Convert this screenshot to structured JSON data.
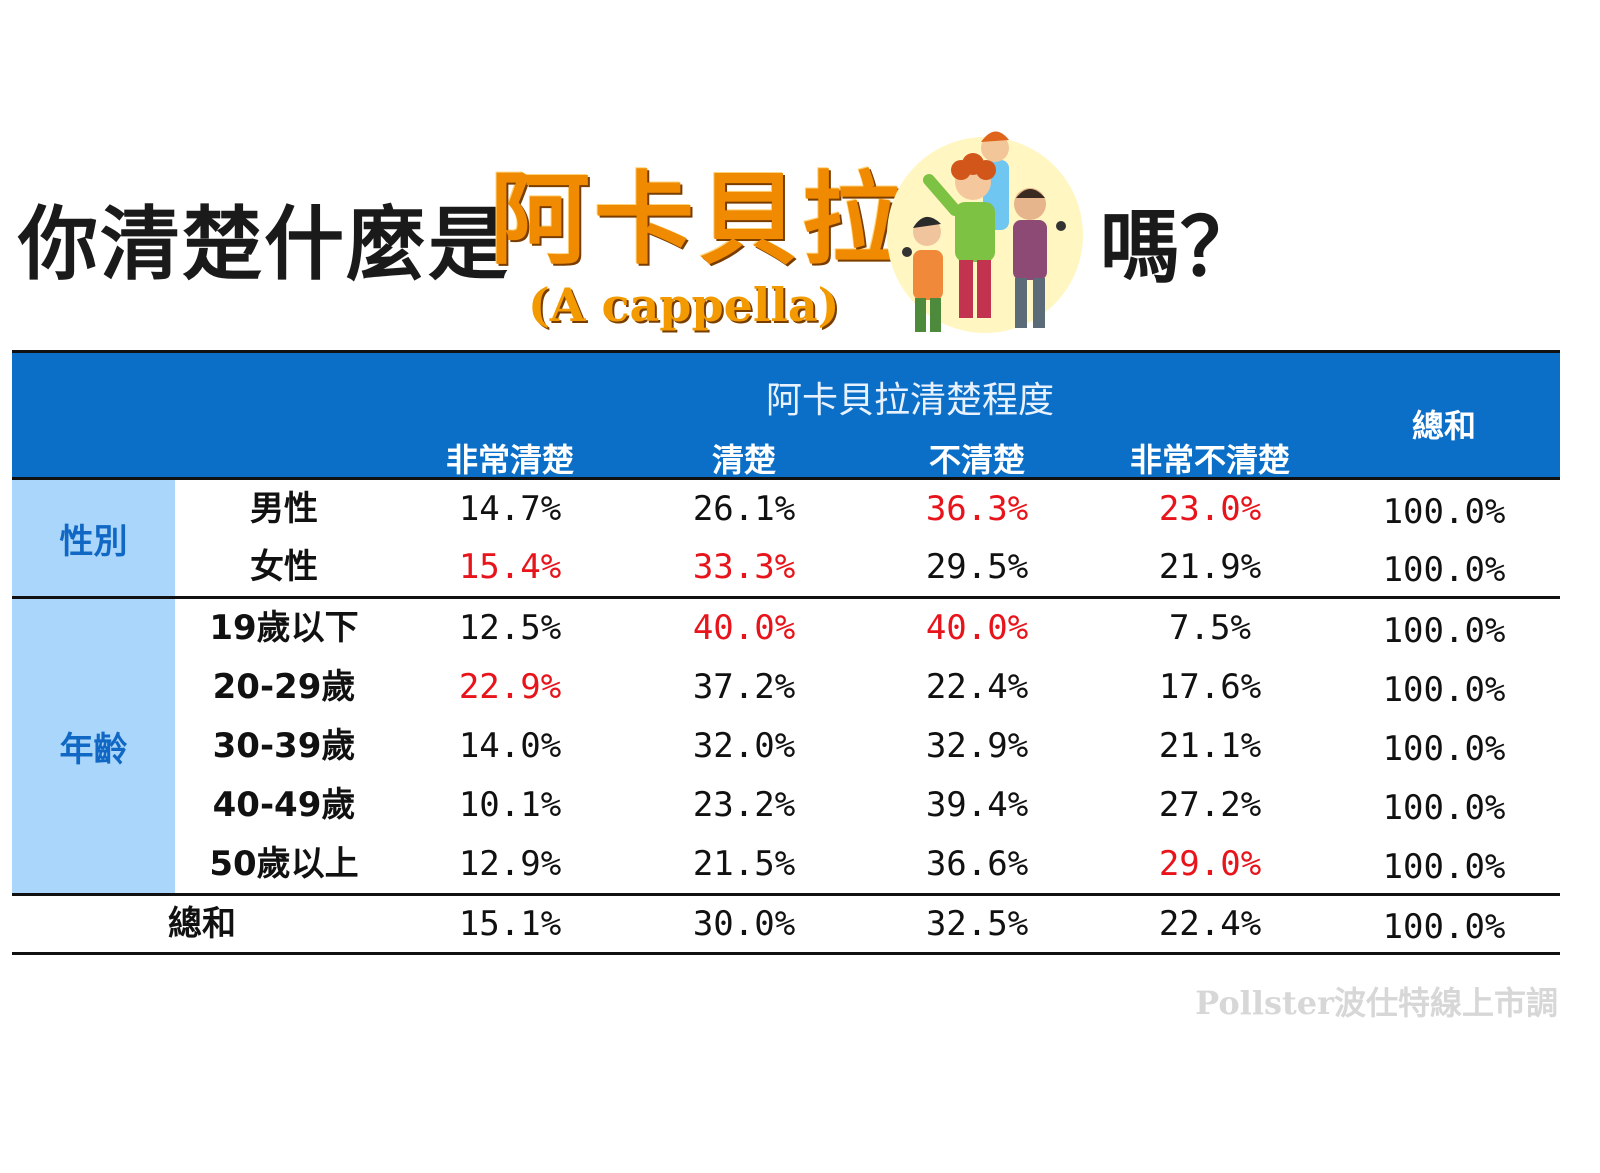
{
  "title": {
    "prefix": "你清楚什麼是",
    "highlight": "阿卡貝拉",
    "subtitle": "(A cappella)",
    "suffix": "嗎？",
    "illustration": "a-cappella-singers-illustration"
  },
  "table": {
    "group_header": "阿卡貝拉清楚程度",
    "columns": [
      "非常清楚",
      "清楚",
      "不清楚",
      "非常不清楚"
    ],
    "total_header": "總和",
    "categories": [
      {
        "label": "性別",
        "rows": [
          {
            "label": "男性",
            "values": [
              "14.7%",
              "26.1%",
              "36.3%",
              "23.0%"
            ],
            "total": "100.0%",
            "highlight": [
              false,
              false,
              true,
              true
            ]
          },
          {
            "label": "女性",
            "values": [
              "15.4%",
              "33.3%",
              "29.5%",
              "21.9%"
            ],
            "total": "100.0%",
            "highlight": [
              true,
              true,
              false,
              false
            ]
          }
        ]
      },
      {
        "label": "年齡",
        "rows": [
          {
            "label": "19歲以下",
            "values": [
              "12.5%",
              "40.0%",
              "40.0%",
              "7.5%"
            ],
            "total": "100.0%",
            "highlight": [
              false,
              true,
              true,
              false
            ]
          },
          {
            "label": "20-29歲",
            "values": [
              "22.9%",
              "37.2%",
              "22.4%",
              "17.6%"
            ],
            "total": "100.0%",
            "highlight": [
              true,
              false,
              false,
              false
            ]
          },
          {
            "label": "30-39歲",
            "values": [
              "14.0%",
              "32.0%",
              "32.9%",
              "21.1%"
            ],
            "total": "100.0%",
            "highlight": [
              false,
              false,
              false,
              false
            ]
          },
          {
            "label": "40-49歲",
            "values": [
              "10.1%",
              "23.2%",
              "39.4%",
              "27.2%"
            ],
            "total": "100.0%",
            "highlight": [
              false,
              false,
              false,
              false
            ]
          },
          {
            "label": "50歲以上",
            "values": [
              "12.9%",
              "21.5%",
              "36.6%",
              "29.0%"
            ],
            "total": "100.0%",
            "highlight": [
              false,
              false,
              false,
              true
            ]
          }
        ]
      }
    ],
    "total_row": {
      "label": "總和",
      "values": [
        "15.1%",
        "30.0%",
        "32.5%",
        "22.4%"
      ],
      "total": "100.0%"
    }
  },
  "watermark": "Pollster波仕特線上市調",
  "colors": {
    "header_bg": "#0b6fc8",
    "category_bg": "#a9d6fa",
    "category_text": "#1168c4",
    "highlight_red": "#e8141b",
    "title_orange": "#f08a00"
  }
}
